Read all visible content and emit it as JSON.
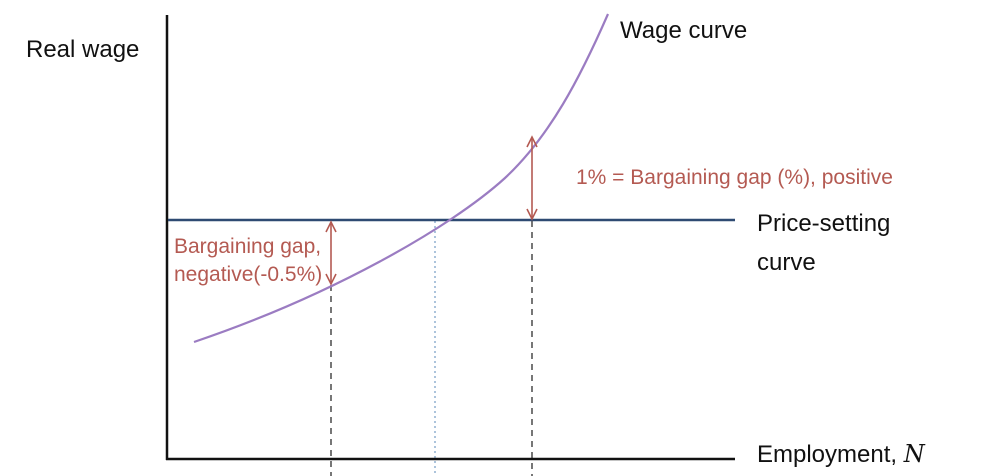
{
  "colors": {
    "axis": "#111111",
    "wage_curve": "#9b7cc2",
    "price_curve": "#2e4a72",
    "gap_arrow": "#b45a52",
    "dashed": "#555555",
    "dotted": "#7fa3c8"
  },
  "axes": {
    "y_label": "Real wage",
    "x_label_text": "Employment, ",
    "x_label_symbol": "N"
  },
  "curves": {
    "wage_curve_label": "Wage curve",
    "price_setting_label_line1": "Price-setting",
    "price_setting_label_line2": "curve"
  },
  "annotations": {
    "positive_gap": "1% = Bargaining gap (%), positive",
    "negative_gap_line1": "Bargaining gap,",
    "negative_gap_line2": "negative(-0.5%)"
  }
}
